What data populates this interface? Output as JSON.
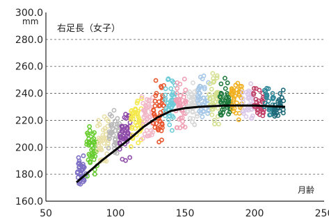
{
  "chart_data": {
    "type": "scatter",
    "title": "右足長（女子）",
    "ylabel": "mm",
    "xlabel": "月齢",
    "xlim": [
      50,
      250
    ],
    "ylim": [
      160,
      300
    ],
    "x_ticks": [
      "50",
      "100",
      "150",
      "200",
      "250"
    ],
    "y_ticks": [
      "160.0",
      "180.0",
      "200.0",
      "220.0",
      "240.0",
      "260.0",
      "280.0",
      "300.0"
    ],
    "grid": "horizontal-dashed",
    "series": [
      {
        "color": "#7c6fc4",
        "x_range": [
          72,
          79
        ],
        "y_range": [
          164,
          198
        ],
        "points": 34
      },
      {
        "color": "#67cc2e",
        "x_range": [
          79,
          87
        ],
        "y_range": [
          172,
          224
        ],
        "points": 42
      },
      {
        "color": "#e8e0a8",
        "x_range": [
          87,
          95
        ],
        "y_range": [
          182,
          230
        ],
        "points": 42
      },
      {
        "color": "#b8b8b8",
        "x_range": [
          95,
          103
        ],
        "y_range": [
          186,
          232
        ],
        "points": 42
      },
      {
        "color": "#8e4aa8",
        "x_range": [
          103,
          111
        ],
        "y_range": [
          186,
          238
        ],
        "points": 42
      },
      {
        "color": "#f4e84c",
        "x_range": [
          111,
          119
        ],
        "y_range": [
          192,
          246
        ],
        "points": 42
      },
      {
        "color": "#f2b8c8",
        "x_range": [
          119,
          127
        ],
        "y_range": [
          196,
          250
        ],
        "points": 42
      },
      {
        "color": "#e8542c",
        "x_range": [
          127,
          135
        ],
        "y_range": [
          200,
          256
        ],
        "points": 42
      },
      {
        "color": "#6ecbd8",
        "x_range": [
          135,
          143
        ],
        "y_range": [
          206,
          260
        ],
        "points": 42
      },
      {
        "color": "#f0a0b4",
        "x_range": [
          143,
          151
        ],
        "y_range": [
          208,
          256
        ],
        "points": 40
      },
      {
        "color": "#d8d8d8",
        "x_range": [
          151,
          159
        ],
        "y_range": [
          210,
          256
        ],
        "points": 40
      },
      {
        "color": "#a8c8e8",
        "x_range": [
          159,
          167
        ],
        "y_range": [
          212,
          258
        ],
        "points": 40
      },
      {
        "color": "#d4e090",
        "x_range": [
          167,
          175
        ],
        "y_range": [
          210,
          262
        ],
        "points": 40
      },
      {
        "color": "#1e7a3c",
        "x_range": [
          175,
          183
        ],
        "y_range": [
          214,
          254
        ],
        "points": 38
      },
      {
        "color": "#f0b020",
        "x_range": [
          183,
          191
        ],
        "y_range": [
          212,
          256
        ],
        "points": 36
      },
      {
        "color": "#dcc8e8",
        "x_range": [
          191,
          199
        ],
        "y_range": [
          212,
          252
        ],
        "points": 34
      },
      {
        "color": "#c04068",
        "x_range": [
          199,
          207
        ],
        "y_range": [
          214,
          248
        ],
        "points": 30
      },
      {
        "color": "#2e8898",
        "x_range": [
          207,
          214
        ],
        "y_range": [
          212,
          250
        ],
        "points": 30
      },
      {
        "color": "#1e6a7a",
        "x_range": [
          214,
          221
        ],
        "y_range": [
          214,
          248
        ],
        "points": 28
      }
    ],
    "trend": {
      "color": "#000000",
      "x": [
        72,
        80,
        90,
        100,
        110,
        120,
        130,
        140,
        150,
        160,
        170,
        180,
        190,
        200,
        210,
        222
      ],
      "y": [
        174,
        181,
        190,
        198,
        206,
        215,
        222,
        227,
        229,
        230,
        230.5,
        231,
        231,
        231,
        230.5,
        230
      ]
    }
  }
}
